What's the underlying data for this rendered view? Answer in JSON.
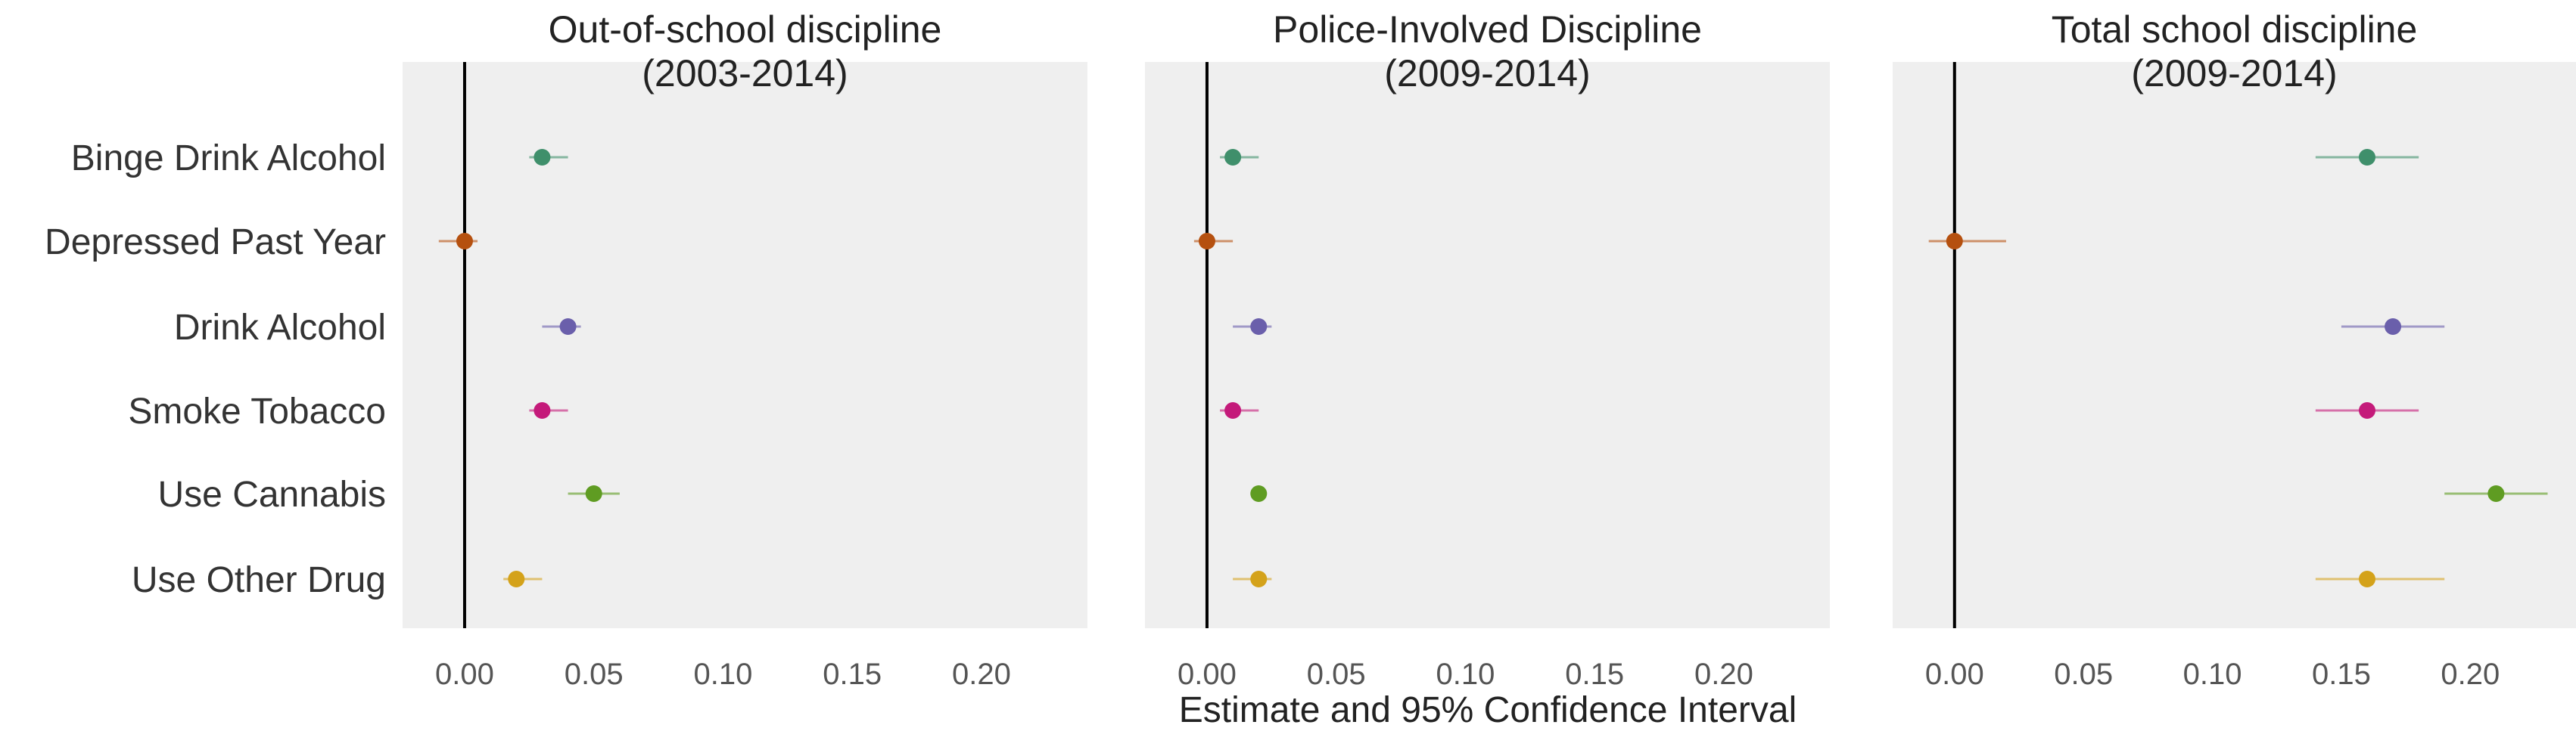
{
  "chart_data": {
    "type": "scatter",
    "subtype": "forest-plot with horizontal confidence intervals, faceted",
    "xlabel": "Estimate and 95% Confidence Interval",
    "xlim": [
      -0.024,
      0.241
    ],
    "xticks": [
      0.0,
      0.05,
      0.1,
      0.15,
      0.2
    ],
    "xtick_labels": [
      "0.00",
      "0.05",
      "0.10",
      "0.15",
      "0.20"
    ],
    "reference_line_x": 0,
    "grid": false,
    "panel_background": "#efefef",
    "legend": "none",
    "categories": [
      "Binge Drink Alcohol",
      "Depressed Past Year",
      "Drink Alcohol",
      "Smoke Tobacco",
      "Use Cannabis",
      "Use Other Drug"
    ],
    "colors": [
      "#3f8f6b",
      "#b5500f",
      "#6a5fab",
      "#c41a7a",
      "#5f9c22",
      "#d4a21a"
    ],
    "panels": [
      {
        "title_line1": "Out-of-school discipline",
        "title_line2": "(2003-2014)",
        "estimates": [
          0.03,
          0.0,
          0.04,
          0.03,
          0.05,
          0.02
        ],
        "ci_low": [
          0.025,
          -0.01,
          0.03,
          0.025,
          0.04,
          0.015
        ],
        "ci_high": [
          0.04,
          0.005,
          0.045,
          0.04,
          0.06,
          0.03
        ]
      },
      {
        "title_line1": "Police-Involved Discipline",
        "title_line2": "(2009-2014)",
        "estimates": [
          0.01,
          0.0,
          0.02,
          0.01,
          0.02,
          0.02
        ],
        "ci_low": [
          0.005,
          -0.005,
          0.01,
          0.005,
          0.018,
          0.01
        ],
        "ci_high": [
          0.02,
          0.01,
          0.025,
          0.02,
          0.022,
          0.025
        ]
      },
      {
        "title_line1": "Total school discipline",
        "title_line2": "(2009-2014)",
        "estimates": [
          0.16,
          0.0,
          0.17,
          0.16,
          0.21,
          0.16
        ],
        "ci_low": [
          0.14,
          -0.01,
          0.15,
          0.14,
          0.19,
          0.14
        ],
        "ci_high": [
          0.18,
          0.02,
          0.19,
          0.18,
          0.23,
          0.19
        ]
      }
    ]
  }
}
